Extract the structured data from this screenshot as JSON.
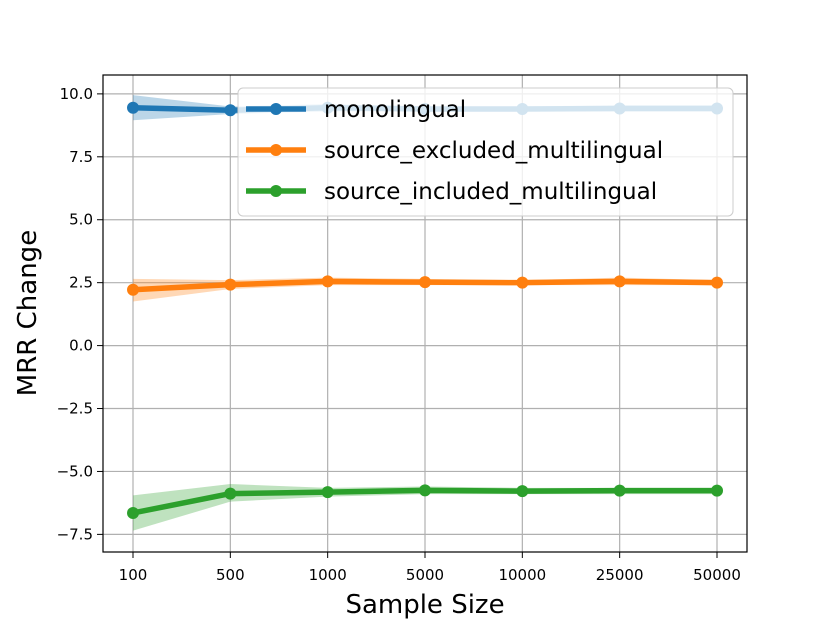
{
  "chart_data": {
    "type": "line",
    "xlabel": "Sample Size",
    "ylabel": "MRR Change",
    "categories": [
      "100",
      "500",
      "1000",
      "5000",
      "10000",
      "25000",
      "50000"
    ],
    "ylim": [
      -8.2,
      10.75
    ],
    "yticks": [
      10.0,
      7.5,
      5.0,
      2.5,
      0.0,
      -2.5,
      -5.0,
      -7.5
    ],
    "ytick_labels": [
      "10.0",
      "7.5",
      "5.0",
      "2.5",
      "0.0",
      "−2.5",
      "−5.0",
      "−7.5"
    ],
    "grid": true,
    "legend_position": "top-right",
    "series": [
      {
        "name": "monolingual",
        "color": "#1f77b4",
        "values": [
          9.45,
          9.35,
          9.45,
          9.4,
          9.4,
          9.42,
          9.42
        ],
        "lower": [
          8.95,
          9.2,
          9.3,
          9.3,
          9.3,
          9.3,
          9.3
        ],
        "upper": [
          9.95,
          9.5,
          9.6,
          9.5,
          9.5,
          9.55,
          9.55
        ]
      },
      {
        "name": "source_excluded_multilingual",
        "color": "#ff7f0e",
        "values": [
          2.22,
          2.42,
          2.55,
          2.52,
          2.5,
          2.55,
          2.5
        ],
        "lower": [
          1.75,
          2.25,
          2.4,
          2.4,
          2.4,
          2.4,
          2.4
        ],
        "upper": [
          2.65,
          2.6,
          2.7,
          2.65,
          2.6,
          2.7,
          2.6
        ]
      },
      {
        "name": "source_included_multilingual",
        "color": "#2ca02c",
        "values": [
          -6.65,
          -5.88,
          -5.82,
          -5.75,
          -5.78,
          -5.76,
          -5.76
        ],
        "lower": [
          -7.35,
          -6.2,
          -6.0,
          -5.9,
          -5.9,
          -5.9,
          -5.9
        ],
        "upper": [
          -5.95,
          -5.5,
          -5.65,
          -5.6,
          -5.65,
          -5.65,
          -5.65
        ]
      }
    ]
  }
}
